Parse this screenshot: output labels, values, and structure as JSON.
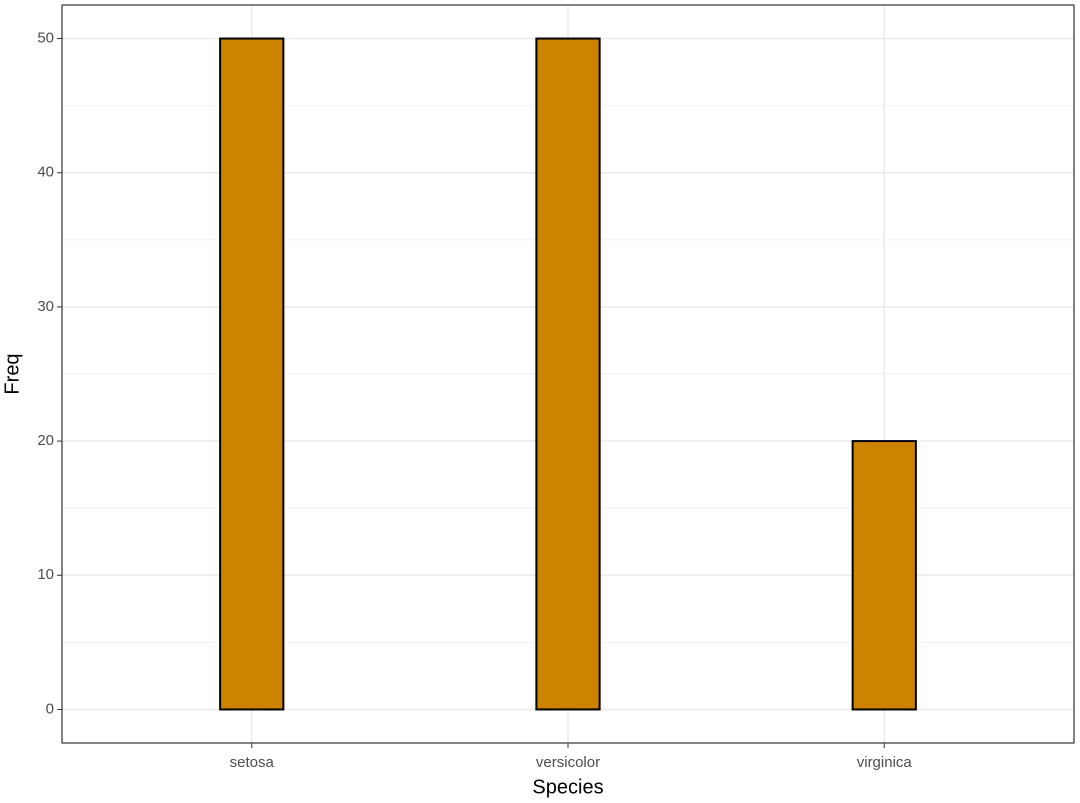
{
  "chart_data": {
    "type": "bar",
    "x_label": "Species",
    "y_label": "Freq",
    "categories": [
      "setosa",
      "versicolor",
      "virginica"
    ],
    "values": [
      50,
      50,
      20
    ],
    "color": "#cc8400",
    "edge_color": "#000000",
    "ylim": [
      -2.5,
      52.5
    ],
    "yticks": [
      0,
      10,
      20,
      30,
      40,
      50
    ],
    "y_minor_grid": [
      5,
      15,
      25,
      35,
      45
    ],
    "grid": true
  }
}
